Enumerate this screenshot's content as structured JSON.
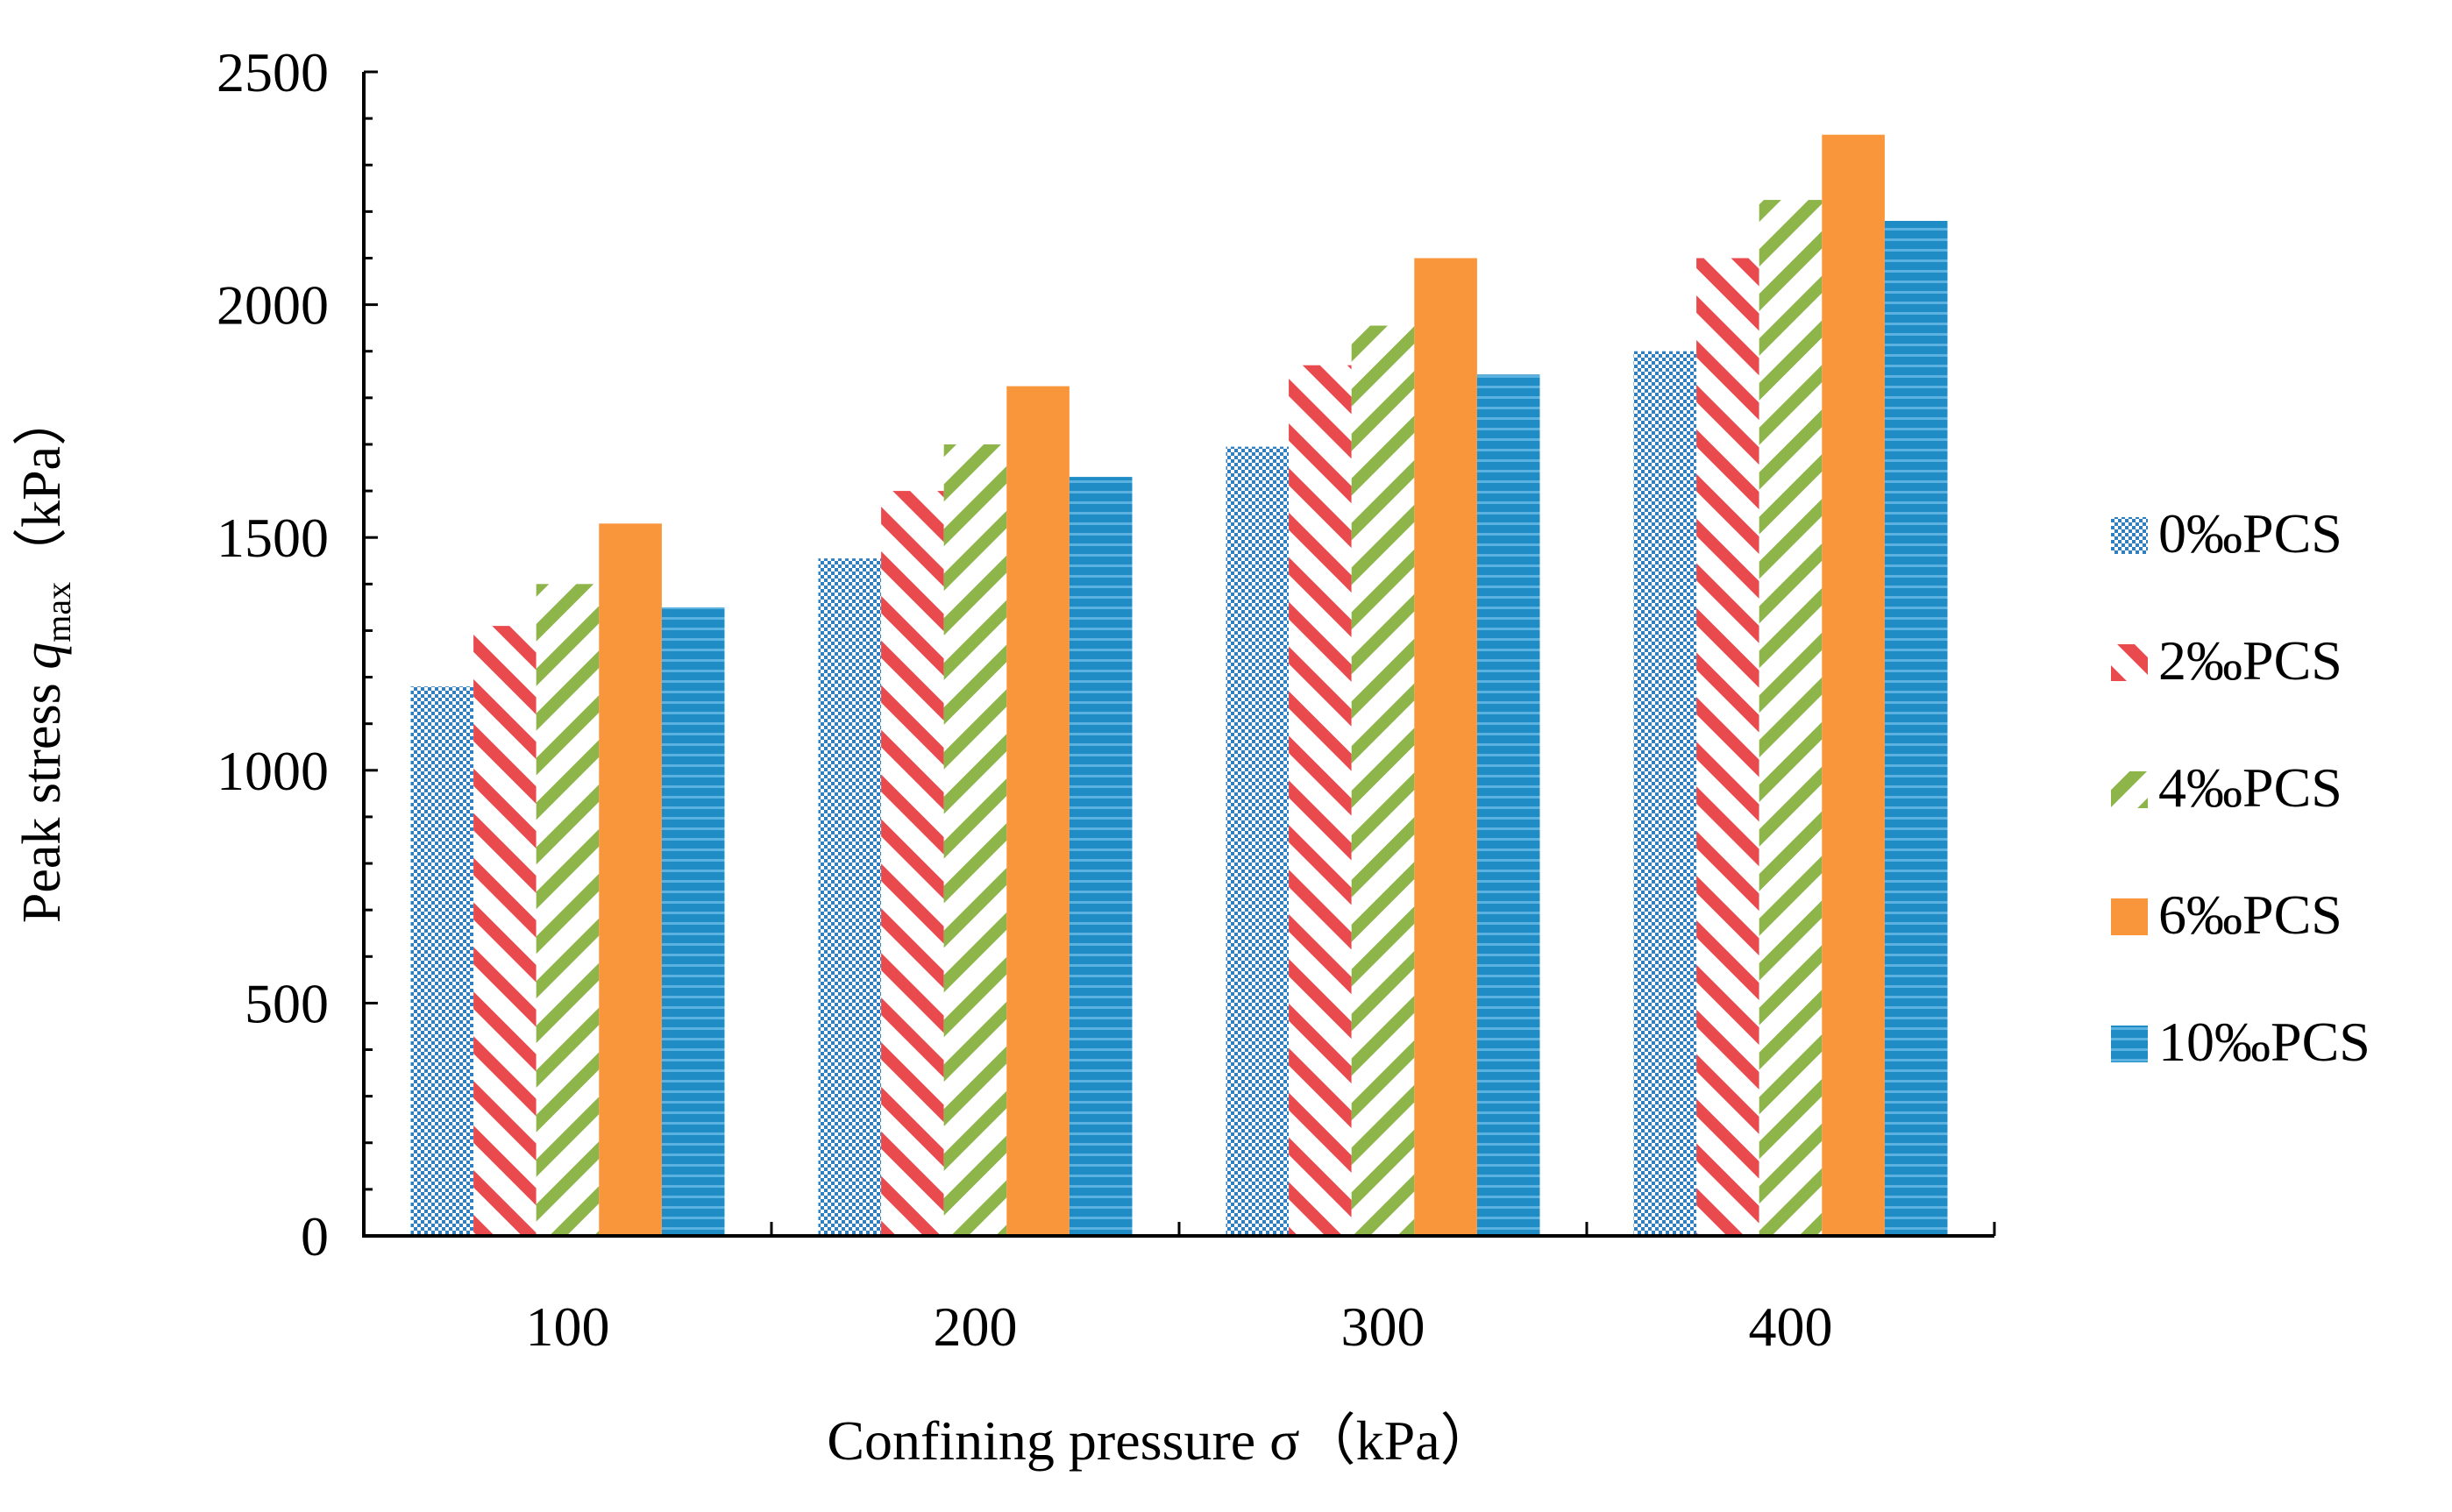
{
  "chart_data": {
    "type": "bar",
    "title": "",
    "xlabel": "Confining pressure σ（kPa）",
    "ylabel": {
      "prefix": "Peak stress ",
      "symbol": "q",
      "subscript": "max",
      "unit": "（kPa）"
    },
    "categories": [
      "100",
      "200",
      "300",
      "400"
    ],
    "ylim": [
      0,
      2500
    ],
    "yticks": [
      "0",
      "500",
      "1000",
      "1500",
      "2000",
      "2500"
    ],
    "minor_tick_step": 100,
    "grid": false,
    "legend_position": "right",
    "series": [
      {
        "name": "0‰PCS",
        "pattern": "checker",
        "color": "#2F7FC1",
        "values": [
          1180,
          1455,
          1695,
          1900
        ]
      },
      {
        "name": "2‰PCS",
        "pattern": "diagonal",
        "color": "#E84A4E",
        "values": [
          1310,
          1600,
          1870,
          2100
        ]
      },
      {
        "name": "4‰PCS",
        "pattern": "diagonal",
        "color": "#8DB54A",
        "values": [
          1400,
          1700,
          1955,
          2225
        ]
      },
      {
        "name": "6‰PCS",
        "pattern": "solid",
        "color": "#F9963B",
        "values": [
          1530,
          1825,
          2100,
          2365
        ]
      },
      {
        "name": "10‰PCS",
        "pattern": "stripes",
        "color": "#1F8CC6",
        "values": [
          1350,
          1630,
          1850,
          2180
        ]
      }
    ]
  }
}
